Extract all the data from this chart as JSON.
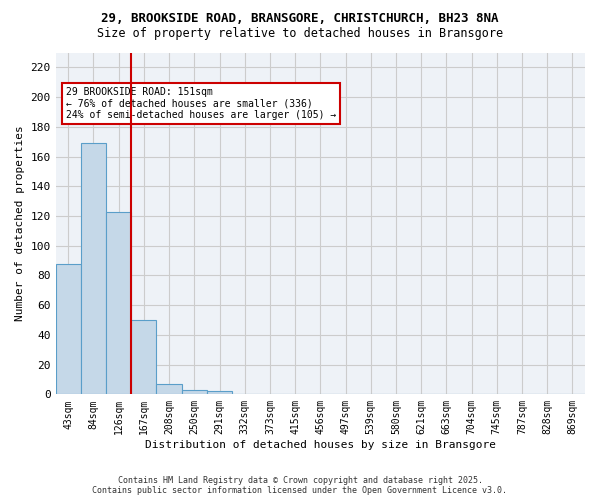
{
  "title_line1": "29, BROOKSIDE ROAD, BRANSGORE, CHRISTCHURCH, BH23 8NA",
  "title_line2": "Size of property relative to detached houses in Bransgore",
  "xlabel": "Distribution of detached houses by size in Bransgore",
  "ylabel": "Number of detached properties",
  "bar_values": [
    88,
    169,
    123,
    50,
    7,
    3,
    2,
    0,
    0,
    0,
    0,
    0,
    0,
    0,
    0,
    0,
    0,
    0,
    0,
    0,
    0
  ],
  "categories": [
    "43sqm",
    "84sqm",
    "126sqm",
    "167sqm",
    "208sqm",
    "250sqm",
    "291sqm",
    "332sqm",
    "373sqm",
    "415sqm",
    "456sqm",
    "497sqm",
    "539sqm",
    "580sqm",
    "621sqm",
    "663sqm",
    "704sqm",
    "745sqm",
    "787sqm",
    "828sqm",
    "869sqm"
  ],
  "bar_color": "#c5d8e8",
  "bar_edge_color": "#5a9ec9",
  "vline_x": 2.5,
  "vline_color": "#cc0000",
  "ylim": [
    0,
    230
  ],
  "yticks": [
    0,
    20,
    40,
    60,
    80,
    100,
    120,
    140,
    160,
    180,
    200,
    220
  ],
  "annotation_text": "29 BROOKSIDE ROAD: 151sqm\n← 76% of detached houses are smaller (336)\n24% of semi-detached houses are larger (105) →",
  "annotation_box_color": "#cc0000",
  "footer_line1": "Contains HM Land Registry data © Crown copyright and database right 2025.",
  "footer_line2": "Contains public sector information licensed under the Open Government Licence v3.0.",
  "grid_color": "#cccccc",
  "background_color": "#eef2f7"
}
